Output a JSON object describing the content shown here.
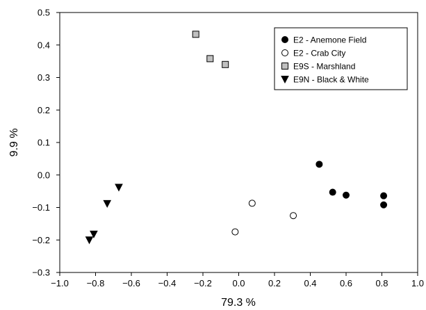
{
  "chart_data": {
    "type": "scatter",
    "xlabel": "79.3 %",
    "ylabel": "9.9 %",
    "xlim": [
      -1.0,
      1.0
    ],
    "ylim": [
      -0.3,
      0.5
    ],
    "xticks": [
      -1.0,
      -0.8,
      -0.6,
      -0.4,
      -0.2,
      0.0,
      0.2,
      0.4,
      0.6,
      0.8,
      1.0
    ],
    "yticks": [
      -0.3,
      -0.2,
      -0.1,
      0.0,
      0.1,
      0.2,
      0.3,
      0.4,
      0.5
    ],
    "xtick_labels": [
      "−1.0",
      "−0.8",
      "−0.6",
      "−0.4",
      "−0.2",
      "0.0",
      "0.2",
      "0.4",
      "0.6",
      "0.8",
      "1.0"
    ],
    "ytick_labels": [
      "−0.3",
      "−0.2",
      "−0.1",
      "0.0",
      "0.1",
      "0.2",
      "0.3",
      "0.4",
      "0.5"
    ],
    "grid": false,
    "legend_position": "top-right",
    "series": [
      {
        "name": "E2 - Anemone Field",
        "marker": "filled-circle",
        "color": "#000000",
        "points": [
          [
            0.45,
            0.033
          ],
          [
            0.525,
            -0.053
          ],
          [
            0.6,
            -0.062
          ],
          [
            0.81,
            -0.064
          ],
          [
            0.81,
            -0.092
          ]
        ]
      },
      {
        "name": "E2 - Crab City",
        "marker": "open-circle",
        "color": "#000000",
        "points": [
          [
            0.075,
            -0.087
          ],
          [
            0.305,
            -0.125
          ],
          [
            -0.02,
            -0.175
          ]
        ]
      },
      {
        "name": "E9S - Marshland",
        "marker": "gray-square",
        "color": "#c0c0c0",
        "points": [
          [
            -0.24,
            0.433
          ],
          [
            -0.16,
            0.358
          ],
          [
            -0.075,
            0.34
          ]
        ]
      },
      {
        "name": "E9N - Black & White",
        "marker": "filled-triangle-down",
        "color": "#000000",
        "points": [
          [
            -0.67,
            -0.038
          ],
          [
            -0.735,
            -0.088
          ],
          [
            -0.81,
            -0.182
          ],
          [
            -0.835,
            -0.2
          ]
        ]
      }
    ]
  }
}
